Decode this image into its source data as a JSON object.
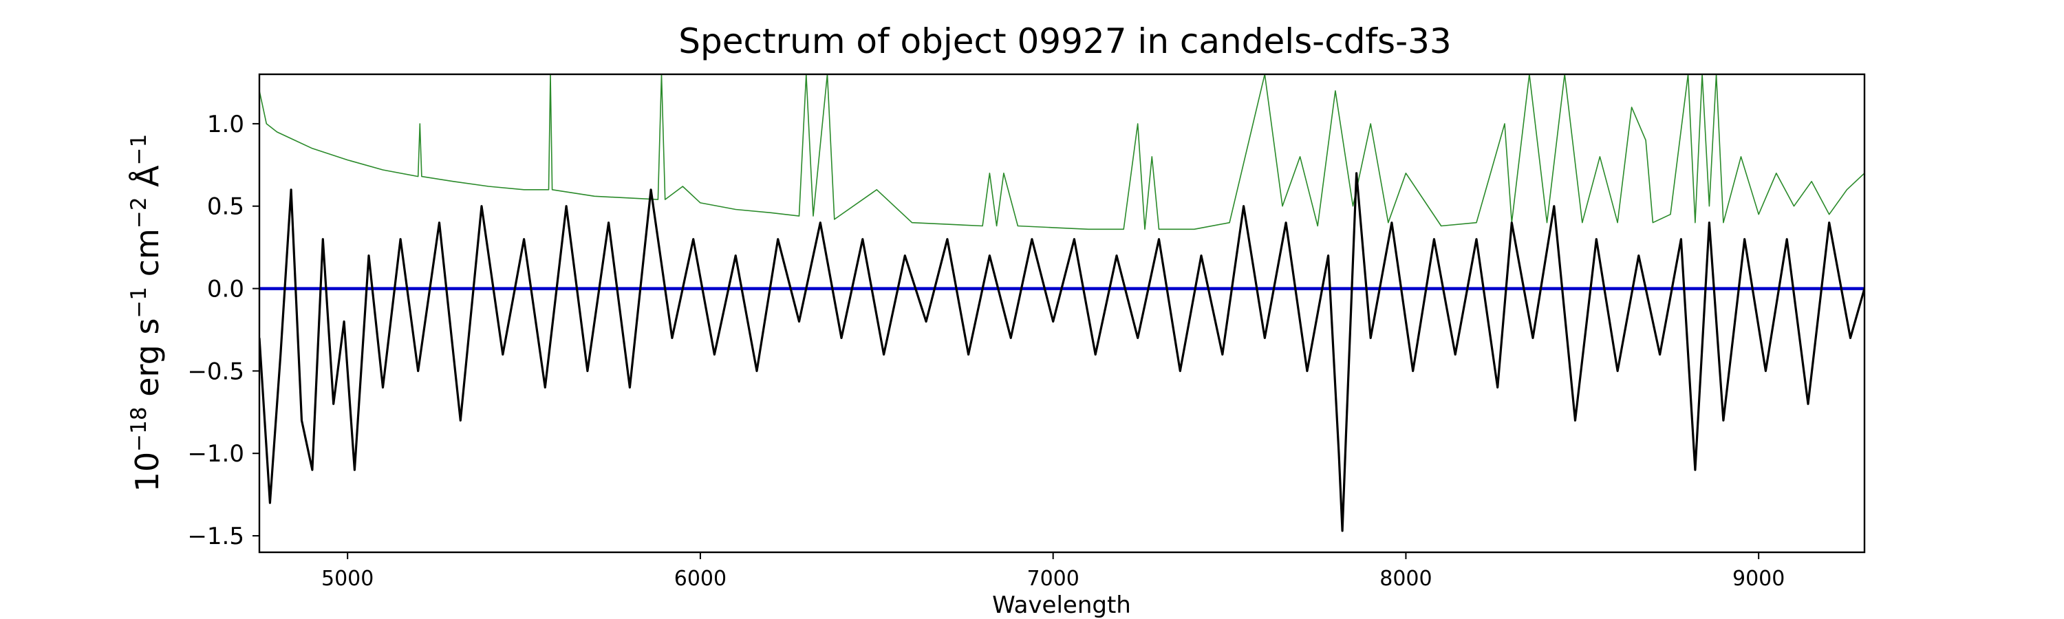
{
  "chart_data": {
    "type": "line",
    "title": "Spectrum of object 09927 in candels-cdfs-33",
    "xlabel": "Wavelength",
    "ylabel": "10^-18 erg s^-1 cm^-2 Å^-1",
    "ylabel_parts": {
      "base1": "10",
      "exp1": "−18",
      "t2": " erg s",
      "exp2": "−1",
      "t3": " cm",
      "exp3": "−2",
      "t4": " Å",
      "exp4": "−1"
    },
    "xlim": [
      4750,
      9300
    ],
    "ylim": [
      -1.6,
      1.3
    ],
    "xticks": [
      5000,
      6000,
      7000,
      8000,
      9000
    ],
    "yticks": [
      -1.5,
      -1.0,
      -0.5,
      0.0,
      0.5,
      1.0
    ],
    "ytick_labels": [
      "−1.5",
      "−1.0",
      "−0.5",
      "0.0",
      "0.5",
      "1.0"
    ],
    "grid": false,
    "colors": {
      "flux": "#000000",
      "noise": "#2a8a2a",
      "model": "#0000cc"
    },
    "series": [
      {
        "key": "flux",
        "x": [
          4750,
          4780,
          4810,
          4840,
          4870,
          4900,
          4930,
          4960,
          4990,
          5020,
          5060,
          5100,
          5150,
          5200,
          5260,
          5320,
          5380,
          5440,
          5500,
          5560,
          5620,
          5680,
          5740,
          5800,
          5860,
          5920,
          5980,
          6040,
          6100,
          6160,
          6220,
          6280,
          6340,
          6400,
          6460,
          6520,
          6580,
          6640,
          6700,
          6760,
          6820,
          6880,
          6940,
          7000,
          7060,
          7120,
          7180,
          7240,
          7300,
          7360,
          7420,
          7480,
          7540,
          7600,
          7660,
          7720,
          7780,
          7810,
          7820,
          7830,
          7860,
          7900,
          7960,
          8020,
          8080,
          8140,
          8200,
          8260,
          8300,
          8360,
          8420,
          8480,
          8540,
          8600,
          8660,
          8720,
          8780,
          8820,
          8860,
          8900,
          8960,
          9020,
          9080,
          9140,
          9200,
          9260,
          9300
        ],
        "y": [
          -0.3,
          -1.3,
          -0.4,
          0.6,
          -0.8,
          -1.1,
          0.3,
          -0.7,
          -0.2,
          -1.1,
          0.2,
          -0.6,
          0.3,
          -0.5,
          0.4,
          -0.8,
          0.5,
          -0.4,
          0.3,
          -0.6,
          0.5,
          -0.5,
          0.4,
          -0.6,
          0.6,
          -0.3,
          0.3,
          -0.4,
          0.2,
          -0.5,
          0.3,
          -0.2,
          0.4,
          -0.3,
          0.3,
          -0.4,
          0.2,
          -0.2,
          0.3,
          -0.4,
          0.2,
          -0.3,
          0.3,
          -0.2,
          0.3,
          -0.4,
          0.2,
          -0.3,
          0.3,
          -0.5,
          0.2,
          -0.4,
          0.5,
          -0.3,
          0.4,
          -0.5,
          0.2,
          -1.0,
          -1.47,
          -0.9,
          0.7,
          -0.3,
          0.4,
          -0.5,
          0.3,
          -0.4,
          0.3,
          -0.6,
          0.4,
          -0.3,
          0.5,
          -0.8,
          0.3,
          -0.5,
          0.2,
          -0.4,
          0.3,
          -1.1,
          0.4,
          -0.8,
          0.3,
          -0.5,
          0.3,
          -0.7,
          0.4,
          -0.3,
          0.0
        ]
      },
      {
        "key": "noise",
        "x": [
          4750,
          4770,
          4800,
          4850,
          4900,
          5000,
          5100,
          5200,
          5205,
          5210,
          5300,
          5400,
          5500,
          5570,
          5575,
          5580,
          5700,
          5880,
          5890,
          5900,
          5950,
          6000,
          6100,
          6200,
          6280,
          6300,
          6320,
          6360,
          6380,
          6500,
          6600,
          6700,
          6800,
          6820,
          6840,
          6860,
          6900,
          7000,
          7100,
          7200,
          7240,
          7260,
          7280,
          7300,
          7400,
          7500,
          7600,
          7650,
          7700,
          7750,
          7800,
          7850,
          7900,
          7950,
          8000,
          8100,
          8200,
          8280,
          8300,
          8350,
          8400,
          8450,
          8500,
          8550,
          8600,
          8640,
          8680,
          8700,
          8750,
          8800,
          8820,
          8840,
          8860,
          8880,
          8900,
          8950,
          9000,
          9050,
          9100,
          9150,
          9200,
          9250,
          9300
        ],
        "y": [
          1.2,
          1.0,
          0.95,
          0.9,
          0.85,
          0.78,
          0.72,
          0.68,
          1.0,
          0.68,
          0.65,
          0.62,
          0.6,
          0.6,
          1.3,
          0.6,
          0.56,
          0.54,
          1.3,
          0.54,
          0.62,
          0.52,
          0.48,
          0.46,
          0.44,
          1.3,
          0.44,
          1.3,
          0.42,
          0.6,
          0.4,
          0.39,
          0.38,
          0.7,
          0.38,
          0.7,
          0.38,
          0.37,
          0.36,
          0.36,
          1.0,
          0.36,
          0.8,
          0.36,
          0.36,
          0.4,
          1.3,
          0.5,
          0.8,
          0.38,
          1.2,
          0.5,
          1.0,
          0.4,
          0.7,
          0.38,
          0.4,
          1.0,
          0.4,
          1.3,
          0.4,
          1.3,
          0.4,
          0.8,
          0.4,
          1.1,
          0.9,
          0.4,
          0.45,
          1.3,
          0.4,
          1.3,
          0.5,
          1.3,
          0.4,
          0.8,
          0.45,
          0.7,
          0.5,
          0.65,
          0.45,
          0.6,
          0.7
        ]
      },
      {
        "key": "model",
        "x": [
          4750,
          9300
        ],
        "y": [
          0.0,
          0.0
        ]
      }
    ]
  }
}
